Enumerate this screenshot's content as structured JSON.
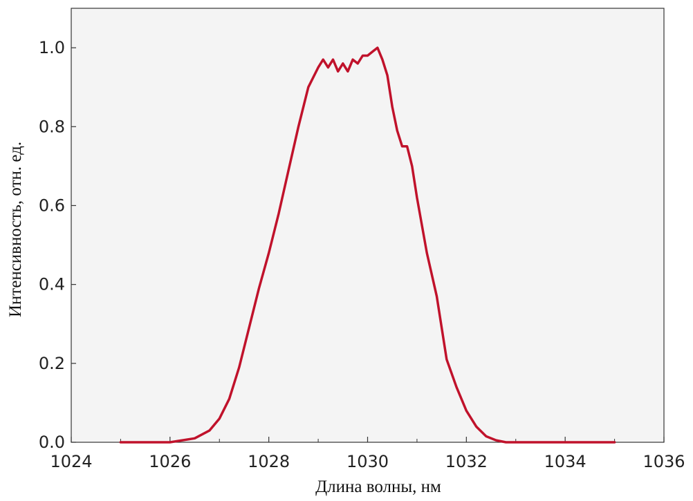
{
  "chart_data": {
    "type": "line",
    "title": "",
    "xlabel": "Длина волны, нм",
    "ylabel": "Интенсивность, отн. ед.",
    "xlim": [
      1024,
      1036
    ],
    "ylim": [
      0,
      1.1
    ],
    "x_ticks": [
      "1024",
      "1026",
      "1028",
      "1030",
      "1032",
      "1034",
      "1036"
    ],
    "y_ticks": [
      "0.0",
      "0.2",
      "0.4",
      "0.6",
      "0.8",
      "1.0"
    ],
    "grid": false,
    "legend": "none",
    "colors": {
      "line": "#c0122b",
      "plot_background": "#f4f4f4",
      "axis": "#333333"
    },
    "series": [
      {
        "x": [
          1025.0,
          1026.0,
          1026.5,
          1026.8,
          1027.0,
          1027.2,
          1027.4,
          1027.6,
          1027.8,
          1028.0,
          1028.2,
          1028.4,
          1028.6,
          1028.8,
          1029.0,
          1029.1,
          1029.2,
          1029.3,
          1029.4,
          1029.5,
          1029.6,
          1029.7,
          1029.8,
          1029.9,
          1030.0,
          1030.1,
          1030.2,
          1030.3,
          1030.4,
          1030.5,
          1030.6,
          1030.7,
          1030.8,
          1030.9,
          1031.0,
          1031.2,
          1031.4,
          1031.6,
          1031.8,
          1032.0,
          1032.2,
          1032.4,
          1032.6,
          1032.8,
          1033.0,
          1033.5,
          1034.0,
          1035.0
        ],
        "values": [
          0.0,
          0.0,
          0.01,
          0.03,
          0.06,
          0.11,
          0.19,
          0.29,
          0.39,
          0.48,
          0.58,
          0.69,
          0.8,
          0.9,
          0.95,
          0.97,
          0.95,
          0.97,
          0.94,
          0.96,
          0.94,
          0.97,
          0.96,
          0.98,
          0.98,
          0.99,
          1.0,
          0.97,
          0.93,
          0.85,
          0.79,
          0.75,
          0.75,
          0.7,
          0.62,
          0.48,
          0.37,
          0.21,
          0.14,
          0.08,
          0.04,
          0.015,
          0.005,
          0.0,
          0.0,
          0.0,
          0.0,
          0.0
        ]
      }
    ]
  }
}
